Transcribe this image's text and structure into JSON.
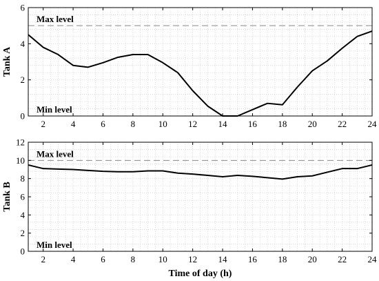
{
  "chart_data": [
    {
      "type": "line",
      "ylabel": "Tank A",
      "xlabel": "",
      "xlim": [
        1,
        24
      ],
      "ylim": [
        0,
        6
      ],
      "xticks": [
        2,
        4,
        6,
        8,
        10,
        12,
        14,
        16,
        18,
        20,
        22,
        24
      ],
      "yticks": [
        0,
        2,
        4,
        6
      ],
      "grid": "minor dotted",
      "x": [
        1,
        2,
        3,
        4,
        5,
        6,
        7,
        8,
        9,
        10,
        11,
        12,
        13,
        14,
        15,
        16,
        17,
        18,
        19,
        20,
        21,
        22,
        23,
        24
      ],
      "series": [
        {
          "values": [
            4.5,
            3.8,
            3.4,
            2.8,
            2.7,
            2.95,
            3.25,
            3.4,
            3.4,
            2.95,
            2.4,
            1.4,
            0.55,
            0.0,
            0.0,
            0.35,
            0.7,
            0.62,
            1.6,
            2.5,
            3.05,
            3.75,
            4.4,
            4.7
          ],
          "color": "#000000"
        }
      ],
      "reference_lines": [
        {
          "label": "Max level",
          "value": 5,
          "color": "#888888",
          "style": "dashed"
        },
        {
          "label": "Min level",
          "value": 0,
          "color": "#888888",
          "style": "dashed"
        }
      ]
    },
    {
      "type": "line",
      "ylabel": "Tank B",
      "xlabel": "Time of day (h)",
      "xlim": [
        1,
        24
      ],
      "ylim": [
        0,
        12
      ],
      "xticks": [
        2,
        4,
        6,
        8,
        10,
        12,
        14,
        16,
        18,
        20,
        22,
        24
      ],
      "yticks": [
        0,
        2,
        4,
        6,
        8,
        10,
        12
      ],
      "grid": "minor dotted",
      "x": [
        1,
        2,
        3,
        4,
        5,
        6,
        7,
        8,
        9,
        10,
        11,
        12,
        13,
        14,
        15,
        16,
        17,
        18,
        19,
        20,
        21,
        22,
        23,
        24
      ],
      "series": [
        {
          "values": [
            9.5,
            9.1,
            9.05,
            9.0,
            8.9,
            8.8,
            8.75,
            8.75,
            8.85,
            8.85,
            8.6,
            8.5,
            8.35,
            8.2,
            8.35,
            8.25,
            8.1,
            7.95,
            8.2,
            8.3,
            8.7,
            9.1,
            9.1,
            9.5
          ],
          "color": "#000000"
        }
      ],
      "reference_lines": [
        {
          "label": "Max level",
          "value": 10,
          "color": "#888888",
          "style": "dashed"
        },
        {
          "label": "Min level",
          "value": 0,
          "color": "#888888",
          "style": "dashed"
        }
      ]
    }
  ]
}
